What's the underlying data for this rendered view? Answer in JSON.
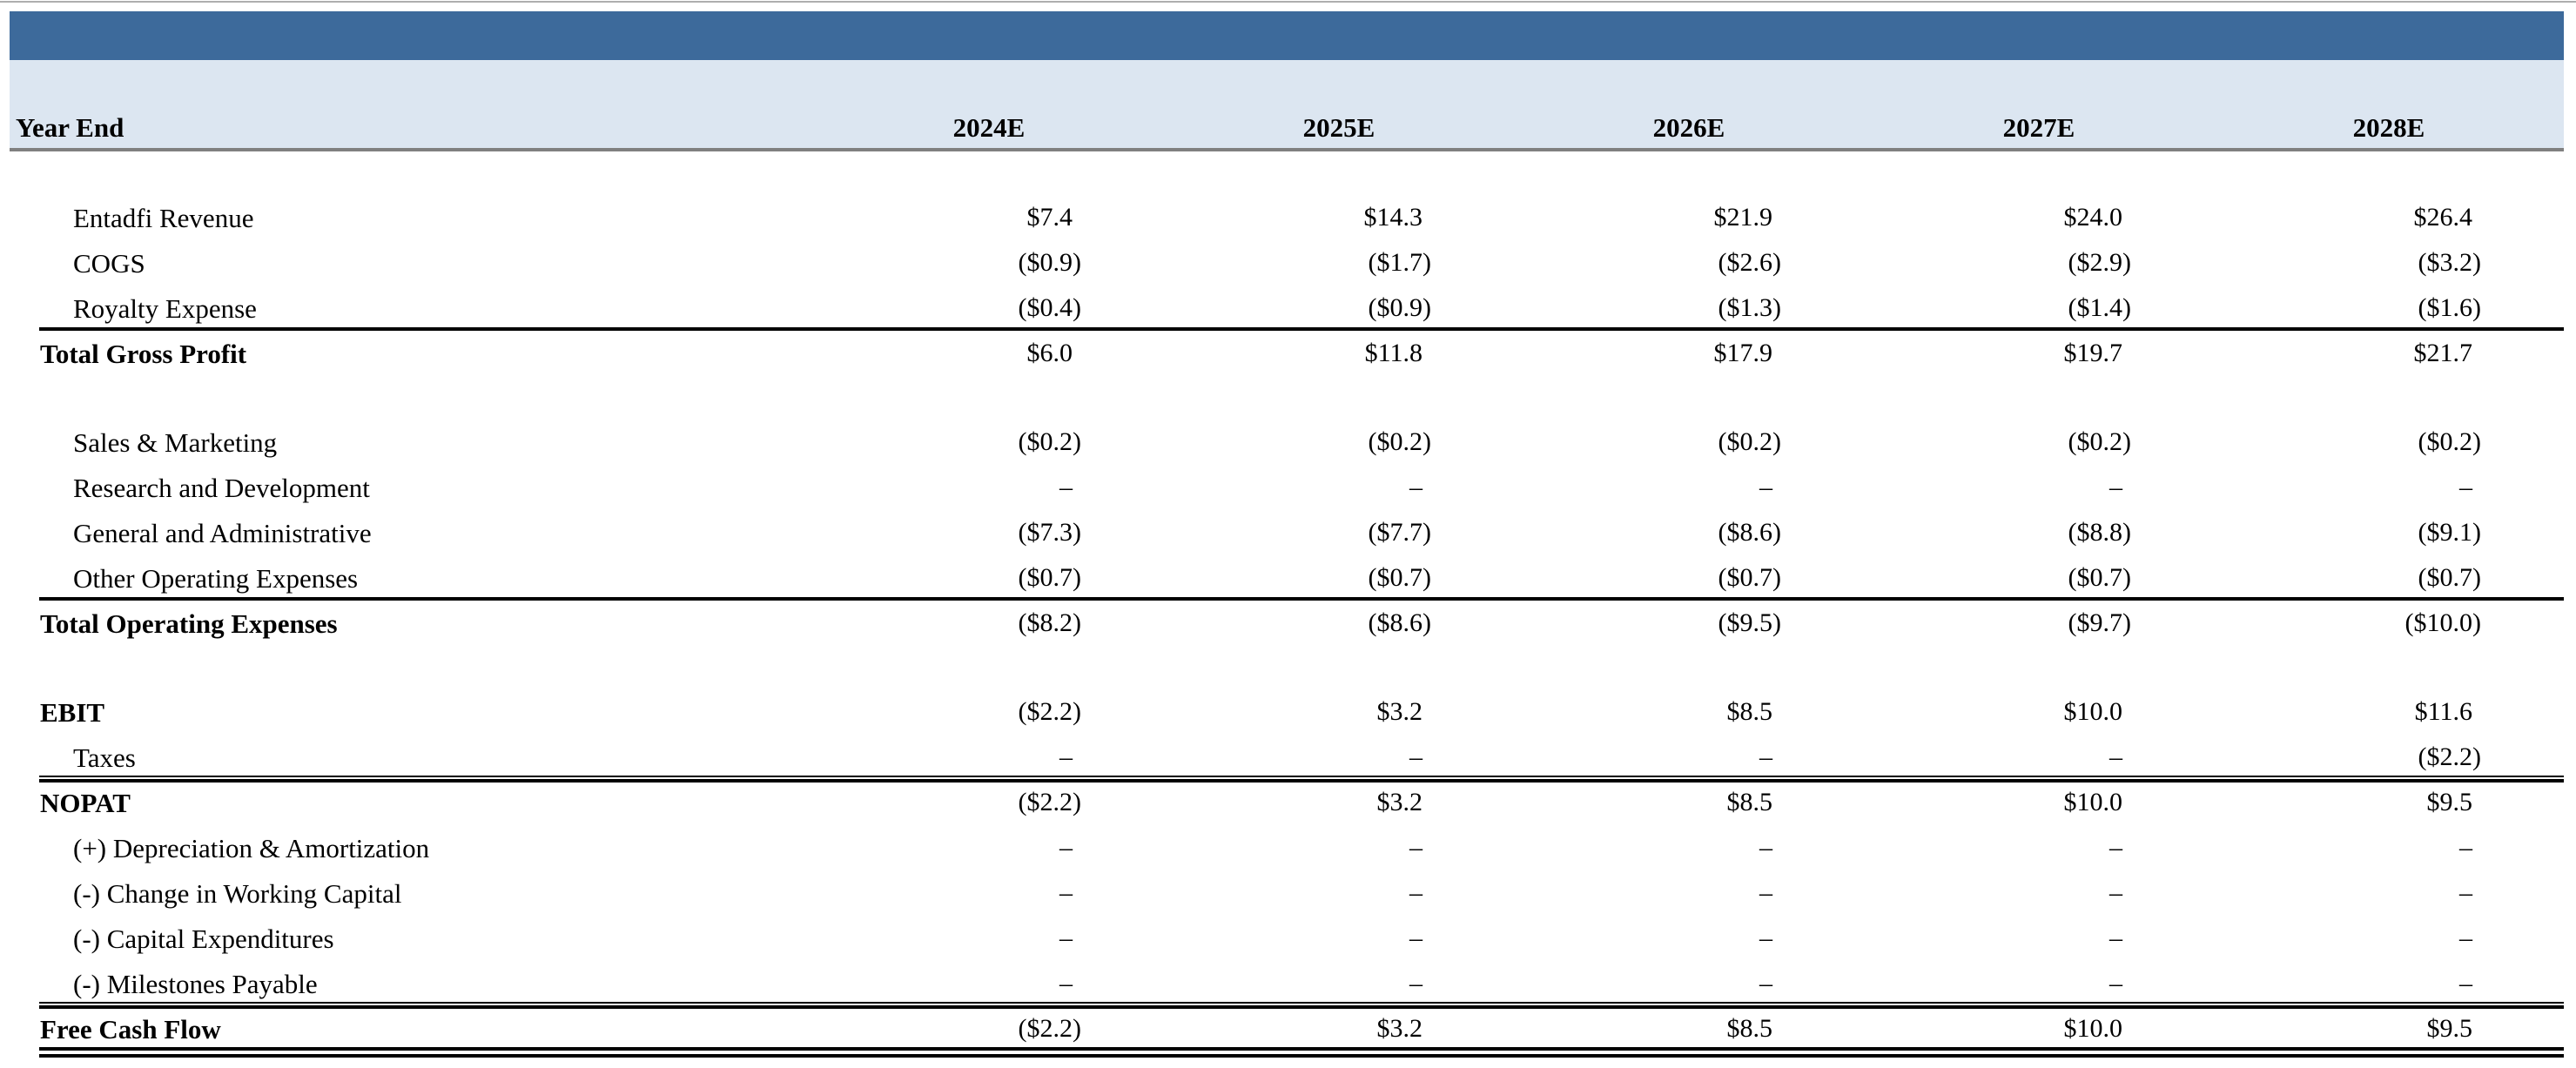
{
  "colors": {
    "title_bar": "#3d6a9b",
    "header_band": "#dce6f1",
    "header_rule": "#808080",
    "text": "#000000",
    "top_hairline": "#aeaeae"
  },
  "table": {
    "header": {
      "label": "Year End",
      "years": [
        "2024E",
        "2025E",
        "2026E",
        "2027E",
        "2028E"
      ]
    },
    "rows": [
      {
        "type": "spacer"
      },
      {
        "label": "Entadfi Revenue",
        "indent": 1,
        "values": [
          "$7.4",
          "$14.3",
          "$21.9",
          "$24.0",
          "$26.4"
        ]
      },
      {
        "label": "COGS",
        "indent": 1,
        "values": [
          "($0.9)",
          "($1.7)",
          "($2.6)",
          "($2.9)",
          "($3.2)"
        ]
      },
      {
        "label": "Royalty Expense",
        "indent": 1,
        "values": [
          "($0.4)",
          "($0.9)",
          "($1.3)",
          "($1.4)",
          "($1.6)"
        ],
        "rule_below": "thick"
      },
      {
        "label": "Total Gross Profit",
        "bold": true,
        "values": [
          "$6.0",
          "$11.8",
          "$17.9",
          "$19.7",
          "$21.7"
        ]
      },
      {
        "type": "spacer"
      },
      {
        "label": "Sales & Marketing",
        "indent": 1,
        "values": [
          "($0.2)",
          "($0.2)",
          "($0.2)",
          "($0.2)",
          "($0.2)"
        ]
      },
      {
        "label": "Research and Development",
        "indent": 1,
        "values": [
          "–",
          "–",
          "–",
          "–",
          "–"
        ]
      },
      {
        "label": "General and Administrative",
        "indent": 1,
        "values": [
          "($7.3)",
          "($7.7)",
          "($8.6)",
          "($8.8)",
          "($9.1)"
        ]
      },
      {
        "label": "Other Operating Expenses",
        "indent": 1,
        "values": [
          "($0.7)",
          "($0.7)",
          "($0.7)",
          "($0.7)",
          "($0.7)"
        ],
        "rule_below": "thick"
      },
      {
        "label": "Total Operating Expenses",
        "bold": true,
        "values": [
          "($8.2)",
          "($8.6)",
          "($9.5)",
          "($9.7)",
          "($10.0)"
        ]
      },
      {
        "type": "spacer"
      },
      {
        "label": "EBIT",
        "bold": true,
        "values": [
          "($2.2)",
          "$3.2",
          "$8.5",
          "$10.0",
          "$11.6"
        ]
      },
      {
        "label": "Taxes",
        "indent": 1,
        "values": [
          "–",
          "–",
          "–",
          "–",
          "($2.2)"
        ],
        "rule_below": "thin_thick"
      },
      {
        "label": "NOPAT",
        "bold": true,
        "values": [
          "($2.2)",
          "$3.2",
          "$8.5",
          "$10.0",
          "$9.5"
        ]
      },
      {
        "label": "(+) Depreciation & Amortization",
        "indent": 1,
        "values": [
          "–",
          "–",
          "–",
          "–",
          "–"
        ]
      },
      {
        "label": "(-) Change in Working Capital",
        "indent": 1,
        "values": [
          "–",
          "–",
          "–",
          "–",
          "–"
        ]
      },
      {
        "label": "(-) Capital Expenditures",
        "indent": 1,
        "values": [
          "–",
          "–",
          "–",
          "–",
          "–"
        ]
      },
      {
        "label": "(-) Milestones Payable",
        "indent": 1,
        "values": [
          "–",
          "–",
          "–",
          "–",
          "–"
        ],
        "rule_below": "thin_thick"
      },
      {
        "label": "Free Cash Flow",
        "bold": true,
        "values": [
          "($2.2)",
          "$3.2",
          "$8.5",
          "$10.0",
          "$9.5"
        ],
        "rule_below": "double_thick"
      }
    ]
  }
}
